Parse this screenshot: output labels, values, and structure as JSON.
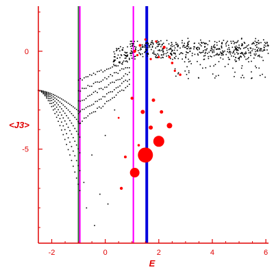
{
  "chart_data": {
    "type": "scatter",
    "title": "",
    "xlabel": "E",
    "ylabel": "<J3>",
    "xlim": [
      -2.5,
      6.1
    ],
    "ylim": [
      -9.8,
      2.3
    ],
    "x_ticks": [
      -2,
      0,
      2,
      4,
      6
    ],
    "y_ticks": [
      0,
      -5
    ],
    "x_tick_labels": [
      "-2",
      "0",
      "2",
      "4",
      "6"
    ],
    "y_tick_labels": [
      "0",
      "-5"
    ],
    "grid": false,
    "legend": "none",
    "vertical_lines": [
      {
        "x": -1.0,
        "color": "#2e7d32"
      },
      {
        "x": -0.95,
        "color": "#ff00ff"
      },
      {
        "x": 1.05,
        "color": "#ff00ff"
      },
      {
        "x": 1.55,
        "color": "#0000dd"
      }
    ],
    "highlighted_points": [
      {
        "x": 1.5,
        "y": -5.3,
        "size": 11
      },
      {
        "x": 2.0,
        "y": -4.6,
        "size": 8
      },
      {
        "x": 1.1,
        "y": -6.2,
        "size": 7
      },
      {
        "x": 2.4,
        "y": -3.8,
        "size": 4
      },
      {
        "x": 1.7,
        "y": -3.9,
        "size": 3
      },
      {
        "x": 1.4,
        "y": -3.1,
        "size": 3
      },
      {
        "x": 2.1,
        "y": -3.1,
        "size": 2.5
      },
      {
        "x": 1.8,
        "y": -2.5,
        "size": 2.5
      },
      {
        "x": 1.0,
        "y": -2.4,
        "size": 2.2
      },
      {
        "x": 0.6,
        "y": -7.0,
        "size": 2.2
      },
      {
        "x": 0.75,
        "y": -5.4,
        "size": 2
      },
      {
        "x": 1.25,
        "y": -4.8,
        "size": 1.8
      },
      {
        "x": 0.5,
        "y": -3.4,
        "size": 1.4
      },
      {
        "x": 1.1,
        "y": 0.0,
        "size": 2.2
      },
      {
        "x": 1.3,
        "y": 0.3,
        "size": 2
      },
      {
        "x": 1.5,
        "y": 0.6,
        "size": 1.6
      },
      {
        "x": 1.9,
        "y": 0.5,
        "size": 1.6
      },
      {
        "x": 2.2,
        "y": 0.2,
        "size": 2.2
      },
      {
        "x": 2.4,
        "y": -0.3,
        "size": 1.8
      },
      {
        "x": 2.5,
        "y": -0.6,
        "size": 1.8
      },
      {
        "x": 2.8,
        "y": -1.2,
        "size": 1.8
      },
      {
        "x": 2.6,
        "y": -1.0,
        "size": 1.6
      },
      {
        "x": 1.7,
        "y": -0.4,
        "size": 1.6
      },
      {
        "x": 2.0,
        "y": -0.3,
        "size": 1.6
      },
      {
        "x": 1.2,
        "y": -0.2,
        "size": 1.6
      }
    ],
    "small_points": {
      "color": "#000000",
      "description": "dense band of ~500 small points near <J3>=0 for E>0.5 plus fanning curves descending to the left toward E=-1"
    }
  }
}
